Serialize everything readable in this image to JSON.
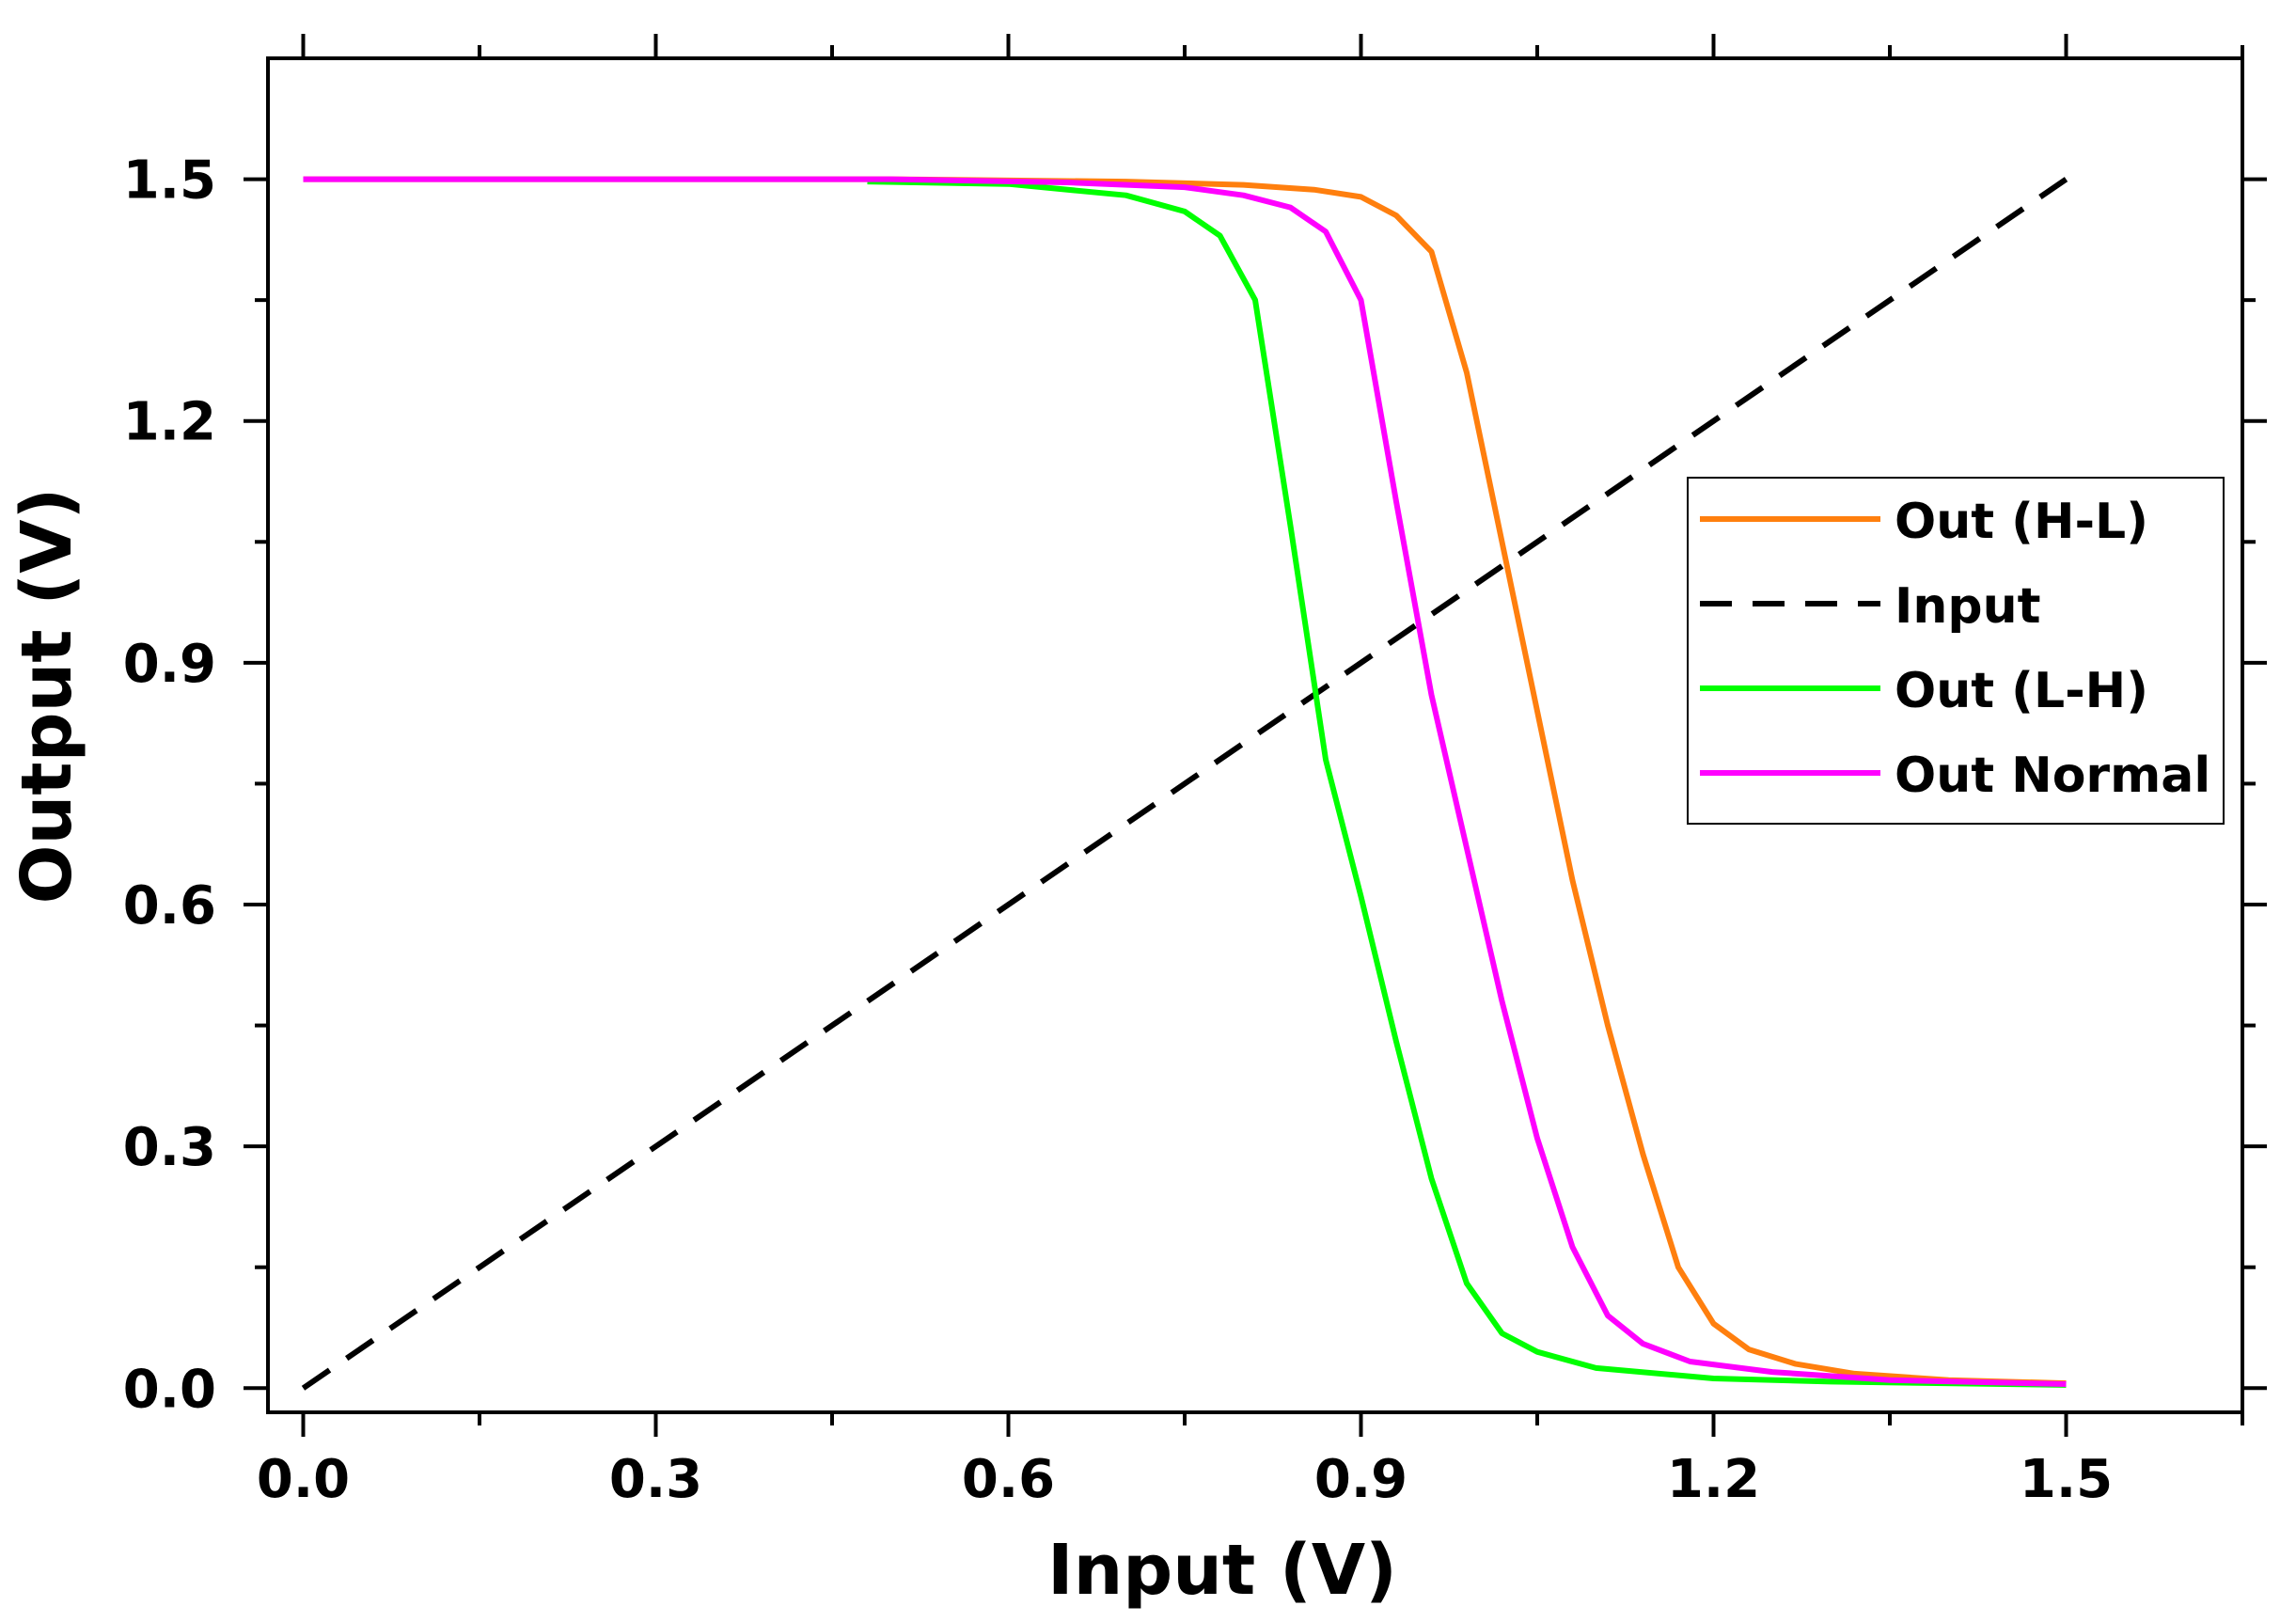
{
  "chart_data": {
    "type": "line",
    "title": "",
    "xlabel": "Input (V)",
    "ylabel": "Output (V)",
    "xlim": [
      -0.03,
      1.65
    ],
    "ylim": [
      -0.03,
      1.65
    ],
    "xticks": [
      {
        "value": 0.0,
        "label": "0.0"
      },
      {
        "value": 0.3,
        "label": "0.3"
      },
      {
        "value": 0.6,
        "label": "0.6"
      },
      {
        "value": 0.9,
        "label": "0.9"
      },
      {
        "value": 1.2,
        "label": "1.2"
      },
      {
        "value": 1.5,
        "label": "1.5"
      }
    ],
    "yticks": [
      {
        "value": 0.0,
        "label": "0.0"
      },
      {
        "value": 0.3,
        "label": "0.3"
      },
      {
        "value": 0.6,
        "label": "0.6"
      },
      {
        "value": 0.9,
        "label": "0.9"
      },
      {
        "value": 1.2,
        "label": "1.2"
      },
      {
        "value": 1.5,
        "label": "1.5"
      }
    ],
    "grid": false,
    "legend_position": "right",
    "series": [
      {
        "name": "Out (H-L)",
        "color": "#ff7f0e",
        "dash": "solid",
        "x": [
          0.0,
          0.5,
          0.7,
          0.8,
          0.86,
          0.9,
          0.93,
          0.96,
          0.99,
          1.02,
          1.05,
          1.08,
          1.11,
          1.14,
          1.17,
          1.2,
          1.23,
          1.27,
          1.32,
          1.4,
          1.5
        ],
        "y": [
          1.5,
          1.5,
          1.497,
          1.493,
          1.487,
          1.478,
          1.455,
          1.41,
          1.26,
          1.05,
          0.84,
          0.63,
          0.45,
          0.29,
          0.15,
          0.08,
          0.048,
          0.03,
          0.018,
          0.01,
          0.006
        ]
      },
      {
        "name": "Input",
        "color": "#000000",
        "dash": "dashed",
        "x": [
          0.0,
          1.5
        ],
        "y": [
          0.0,
          1.5
        ]
      },
      {
        "name": "Out (L-H)",
        "color": "#00ff00",
        "dash": "solid",
        "x": [
          0.48,
          0.6,
          0.7,
          0.75,
          0.78,
          0.81,
          0.84,
          0.87,
          0.9,
          0.93,
          0.96,
          0.99,
          1.02,
          1.05,
          1.1,
          1.2,
          1.3,
          1.5
        ],
        "y": [
          1.497,
          1.494,
          1.48,
          1.46,
          1.43,
          1.35,
          1.07,
          0.78,
          0.61,
          0.43,
          0.26,
          0.13,
          0.068,
          0.045,
          0.025,
          0.012,
          0.008,
          0.004
        ]
      },
      {
        "name": "Out Normal",
        "color": "#ff00ff",
        "dash": "solid",
        "x": [
          0.0,
          0.5,
          0.65,
          0.75,
          0.8,
          0.84,
          0.87,
          0.9,
          0.93,
          0.96,
          0.99,
          1.02,
          1.05,
          1.08,
          1.11,
          1.14,
          1.18,
          1.25,
          1.35,
          1.5
        ],
        "y": [
          1.5,
          1.5,
          1.496,
          1.49,
          1.48,
          1.465,
          1.435,
          1.35,
          1.1,
          0.86,
          0.67,
          0.48,
          0.31,
          0.175,
          0.09,
          0.055,
          0.033,
          0.02,
          0.01,
          0.005
        ]
      }
    ]
  }
}
